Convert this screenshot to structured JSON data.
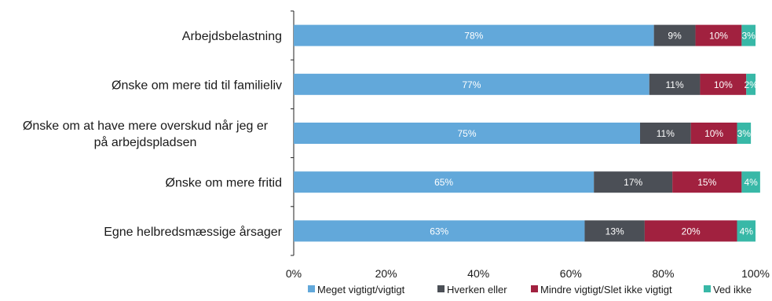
{
  "chart_data": {
    "type": "bar",
    "orientation": "horizontal",
    "stacked": true,
    "percent_stacked": true,
    "categories": [
      "Arbejdsbelastning",
      "Ønske om mere tid til familieliv",
      "Ønske om at have mere overskud når jeg er på arbejdspladsen",
      "Ønske om mere fritid",
      "Egne helbredsmæssige årsager"
    ],
    "category_label_lines": [
      [
        "Arbejdsbelastning"
      ],
      [
        "Ønske om mere tid til familieliv"
      ],
      [
        "Ønske om at have mere overskud når jeg er",
        "på arbejdspladsen"
      ],
      [
        "Ønske om mere fritid"
      ],
      [
        "Egne helbredsmæssige årsager"
      ]
    ],
    "series": [
      {
        "name": "Meget vigtigt/vigtigt",
        "color": "#62a8da",
        "label_color": "#ffffff",
        "values": [
          78,
          77,
          75,
          65,
          63
        ],
        "labels": [
          "78%",
          "77%",
          "75%",
          "65%",
          "63%"
        ]
      },
      {
        "name": "Hverken eller",
        "color": "#4b4f56",
        "label_color": "#ffffff",
        "values": [
          9,
          11,
          11,
          17,
          13
        ],
        "labels": [
          "9%",
          "11%",
          "11%",
          "17%",
          "13%"
        ]
      },
      {
        "name": "Mindre vigtigt/Slet ikke vigtigt",
        "color": "#a1213f",
        "label_color": "#ffffff",
        "values": [
          10,
          10,
          10,
          15,
          20
        ],
        "labels": [
          "10%",
          "10%",
          "10%",
          "15%",
          "20%"
        ]
      },
      {
        "name": "Ved ikke",
        "color": "#38b8a7",
        "label_color": "#ffffff",
        "values": [
          3,
          2,
          3,
          4,
          4
        ],
        "labels": [
          "3%",
          "2%",
          "3%",
          "4%",
          "4%"
        ]
      }
    ],
    "xlim": [
      0,
      100
    ],
    "x_ticks": [
      0,
      20,
      40,
      60,
      80,
      100
    ],
    "x_tick_labels": [
      "0%",
      "20%",
      "40%",
      "60%",
      "80%",
      "100%"
    ],
    "grid": false,
    "legend_position": "bottom"
  }
}
